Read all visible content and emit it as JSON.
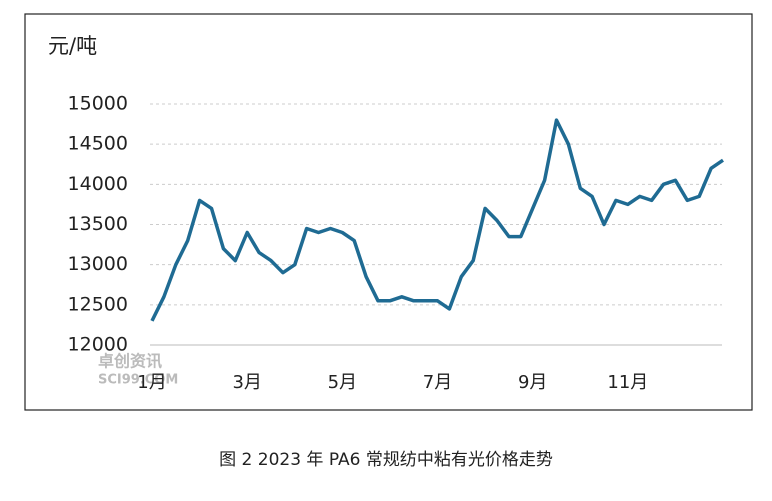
{
  "chart_data": {
    "type": "line",
    "caption": "图 2  2023 年 PA6 常规纺中粘有光价格走势",
    "y_axis_label": "元/吨",
    "watermark": [
      "卓创资讯",
      "SCI99.COM"
    ],
    "categories": [
      "1月",
      null,
      null,
      null,
      null,
      null,
      null,
      null,
      "3月",
      null,
      null,
      null,
      null,
      null,
      null,
      null,
      "5月",
      null,
      null,
      null,
      null,
      null,
      null,
      null,
      "7月",
      null,
      null,
      null,
      null,
      null,
      null,
      null,
      "9月",
      null,
      null,
      null,
      null,
      null,
      null,
      null,
      "11月",
      null,
      null,
      null,
      null,
      null,
      null,
      null,
      null
    ],
    "series": [
      {
        "name": "PA6",
        "color": "#1f6b93",
        "values": [
          12300,
          12600,
          13000,
          13300,
          13800,
          13700,
          13200,
          13050,
          13400,
          13150,
          13050,
          12900,
          13000,
          13450,
          13400,
          13450,
          13400,
          13300,
          12850,
          12550,
          12550,
          12600,
          12550,
          12550,
          12550,
          12450,
          12850,
          13050,
          13700,
          13550,
          13350,
          13350,
          13700,
          14050,
          14800,
          14500,
          13950,
          13850,
          13500,
          13800,
          13750,
          13850,
          13800,
          14000,
          14050,
          13800,
          13850,
          14200,
          14300
        ]
      }
    ],
    "ylim": [
      12000,
      15000
    ],
    "yticks": [
      12000,
      12500,
      13000,
      13500,
      14000,
      14500,
      15000
    ],
    "grid": true
  }
}
